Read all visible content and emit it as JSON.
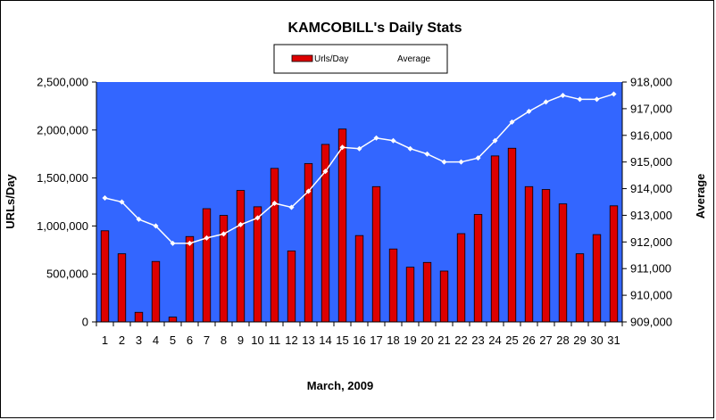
{
  "chart_data": {
    "type": "bar",
    "title": "KAMCOBILL's Daily Stats",
    "xlabel": "March, 2009",
    "ylabel": "URLs/Day",
    "y2label": "Average",
    "legend": {
      "placement": "top-center",
      "entries": [
        "Urls/Day",
        "Average"
      ]
    },
    "categories": [
      "1",
      "2",
      "3",
      "4",
      "5",
      "6",
      "7",
      "8",
      "9",
      "10",
      "11",
      "12",
      "13",
      "14",
      "15",
      "16",
      "17",
      "18",
      "19",
      "20",
      "21",
      "22",
      "23",
      "24",
      "25",
      "26",
      "27",
      "28",
      "29",
      "30",
      "31"
    ],
    "ylim": [
      0,
      2500000
    ],
    "y2lim": [
      909000,
      918000
    ],
    "yticks": [
      "0",
      "500,000",
      "1,000,000",
      "1,500,000",
      "2,000,000",
      "2,500,000"
    ],
    "y2ticks": [
      "909,000",
      "910,000",
      "911,000",
      "912,000",
      "913,000",
      "914,000",
      "915,000",
      "916,000",
      "917,000",
      "918,000"
    ],
    "grid": false,
    "series": [
      {
        "name": "Urls/Day",
        "type": "bar",
        "axis": "left",
        "color": "#dd0000",
        "values": [
          950000,
          710000,
          100000,
          630000,
          50000,
          890000,
          1180000,
          1110000,
          1370000,
          1200000,
          1600000,
          740000,
          1650000,
          1850000,
          2010000,
          900000,
          1410000,
          760000,
          570000,
          620000,
          530000,
          920000,
          1120000,
          1730000,
          1810000,
          1410000,
          1380000,
          1230000,
          710000,
          910000,
          1210000
        ]
      },
      {
        "name": "Average",
        "type": "line",
        "axis": "right",
        "color": "#ffffff",
        "values": [
          913650,
          913500,
          912850,
          912600,
          911950,
          911950,
          912150,
          912300,
          912650,
          912900,
          913450,
          913300,
          913900,
          914650,
          915550,
          915500,
          915900,
          915800,
          915500,
          915300,
          915000,
          915000,
          915150,
          915800,
          916500,
          916900,
          917250,
          917500,
          917350,
          917350,
          917550
        ]
      }
    ]
  },
  "colors": {
    "plot_background": "#3366ff",
    "bar": "#dd0000",
    "line": "#ffffff"
  }
}
